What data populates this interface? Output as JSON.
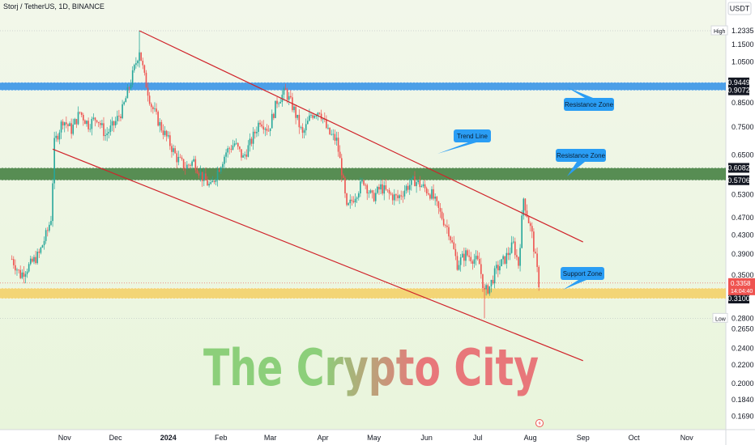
{
  "header": {
    "symbol_line": "Storj / TetherUS, 1D, BINANCE",
    "currency": "USDT"
  },
  "watermark": {
    "line": "The Crypto City",
    "colors": {
      "the": "#8ccf7a",
      "crypto_start": "#8ccf7a",
      "crypto_end": "#e8777a",
      "city": "#e8777a"
    }
  },
  "colors": {
    "background_top": "#f2f7ea",
    "background_bottom": "#e9f5dc",
    "channel_line": "#d0232a",
    "resistance_blue": "#2f8fe6",
    "resistance_green": "#3c7a3a",
    "support_yellow": "#f4cf63",
    "bull_candle": "#26a69a",
    "bear_candle": "#ef5350",
    "callout": "#2a9df4"
  },
  "chart_data": {
    "type": "candlestick",
    "title": "Storj / TetherUS, 1D, BINANCE",
    "y_scale": "log",
    "ylim": [
      0.16,
      1.36
    ],
    "price_ticks": [
      "1.2335",
      "1.1500",
      "1.0500",
      "0.9449",
      "0.9072",
      "0.8500",
      "0.7500",
      "0.6500",
      "0.6082",
      "0.5706",
      "0.5300",
      "0.4700",
      "0.4300",
      "0.3900",
      "0.3500",
      "0.3358",
      "0.3269",
      "0.3100",
      "0.2800",
      "0.2650",
      "0.2400",
      "0.2200",
      "0.2000",
      "0.1840",
      "0.1690"
    ],
    "x_ticks": [
      "Nov",
      "Dec",
      "2024",
      "Feb",
      "Mar",
      "Apr",
      "May",
      "Jun",
      "Jul",
      "Aug",
      "Sep",
      "Oct",
      "Nov"
    ],
    "high_label": {
      "text": "High",
      "price": 1.2335
    },
    "low_label": {
      "text": "Low",
      "price": 0.28
    },
    "last_price": {
      "price": "0.3358",
      "countdown": "14:04:40"
    },
    "zones": [
      {
        "name": "Resistance Zone",
        "low": 0.9072,
        "high": 0.9449,
        "color": "blue"
      },
      {
        "name": "Resistance Zone",
        "low": 0.5706,
        "high": 0.6082,
        "color": "green"
      },
      {
        "name": "Support Zone",
        "low": 0.31,
        "high": 0.3269,
        "color": "yellow"
      }
    ],
    "annotations": [
      {
        "text": "Trend Line"
      },
      {
        "text": "Resistance Zone"
      },
      {
        "text": "Resistance Zone"
      },
      {
        "text": "Support Zone"
      }
    ],
    "channel": {
      "upper": [
        {
          "date": "2023-12-15",
          "price": 1.2335
        },
        {
          "date": "2024-09-01",
          "price": 0.415
        }
      ],
      "lower": [
        {
          "date": "2023-10-25",
          "price": 0.67
        },
        {
          "date": "2024-09-01",
          "price": 0.225
        }
      ]
    },
    "series": [
      {
        "close_path": [
          [
            "2023-10-01",
            0.38
          ],
          [
            "2023-10-06",
            0.35
          ],
          [
            "2023-10-12",
            0.37
          ],
          [
            "2023-10-17",
            0.39
          ],
          [
            "2023-10-22",
            0.44
          ],
          [
            "2023-10-24",
            0.47
          ],
          [
            "2023-10-26",
            0.69
          ],
          [
            "2023-10-31",
            0.78
          ],
          [
            "2023-11-05",
            0.74
          ],
          [
            "2023-11-10",
            0.81
          ],
          [
            "2023-11-15",
            0.76
          ],
          [
            "2023-11-20",
            0.79
          ],
          [
            "2023-11-25",
            0.72
          ],
          [
            "2023-11-30",
            0.76
          ],
          [
            "2023-12-05",
            0.82
          ],
          [
            "2023-12-10",
            0.95
          ],
          [
            "2023-12-15",
            1.12
          ],
          [
            "2023-12-18",
            0.97
          ],
          [
            "2023-12-22",
            0.84
          ],
          [
            "2023-12-27",
            0.76
          ],
          [
            "2024-01-01",
            0.7
          ],
          [
            "2024-01-06",
            0.64
          ],
          [
            "2024-01-11",
            0.61
          ],
          [
            "2024-01-16",
            0.63
          ],
          [
            "2024-01-21",
            0.58
          ],
          [
            "2024-01-26",
            0.55
          ],
          [
            "2024-01-30",
            0.6
          ],
          [
            "2024-02-04",
            0.66
          ],
          [
            "2024-02-09",
            0.69
          ],
          [
            "2024-02-14",
            0.64
          ],
          [
            "2024-02-19",
            0.7
          ],
          [
            "2024-02-24",
            0.78
          ],
          [
            "2024-02-29",
            0.74
          ],
          [
            "2024-03-05",
            0.86
          ],
          [
            "2024-03-10",
            0.9
          ],
          [
            "2024-03-15",
            0.82
          ],
          [
            "2024-03-20",
            0.72
          ],
          [
            "2024-03-25",
            0.8
          ],
          [
            "2024-03-30",
            0.82
          ],
          [
            "2024-04-04",
            0.73
          ],
          [
            "2024-04-09",
            0.7
          ],
          [
            "2024-04-12",
            0.6
          ],
          [
            "2024-04-15",
            0.49
          ],
          [
            "2024-04-20",
            0.53
          ],
          [
            "2024-04-25",
            0.57
          ],
          [
            "2024-04-30",
            0.52
          ],
          [
            "2024-05-05",
            0.55
          ],
          [
            "2024-05-10",
            0.53
          ],
          [
            "2024-05-15",
            0.52
          ],
          [
            "2024-05-20",
            0.55
          ],
          [
            "2024-05-25",
            0.57
          ],
          [
            "2024-05-30",
            0.55
          ],
          [
            "2024-06-04",
            0.53
          ],
          [
            "2024-06-09",
            0.48
          ],
          [
            "2024-06-14",
            0.44
          ],
          [
            "2024-06-19",
            0.37
          ],
          [
            "2024-06-24",
            0.39
          ],
          [
            "2024-06-29",
            0.38
          ],
          [
            "2024-07-02",
            0.37
          ],
          [
            "2024-07-05",
            0.32
          ],
          [
            "2024-07-08",
            0.33
          ],
          [
            "2024-07-12",
            0.36
          ],
          [
            "2024-07-17",
            0.38
          ],
          [
            "2024-07-22",
            0.41
          ],
          [
            "2024-07-25",
            0.37
          ],
          [
            "2024-07-28",
            0.52
          ],
          [
            "2024-07-30",
            0.48
          ],
          [
            "2024-08-02",
            0.43
          ],
          [
            "2024-08-04",
            0.38
          ],
          [
            "2024-08-06",
            0.3358
          ]
        ]
      }
    ]
  }
}
